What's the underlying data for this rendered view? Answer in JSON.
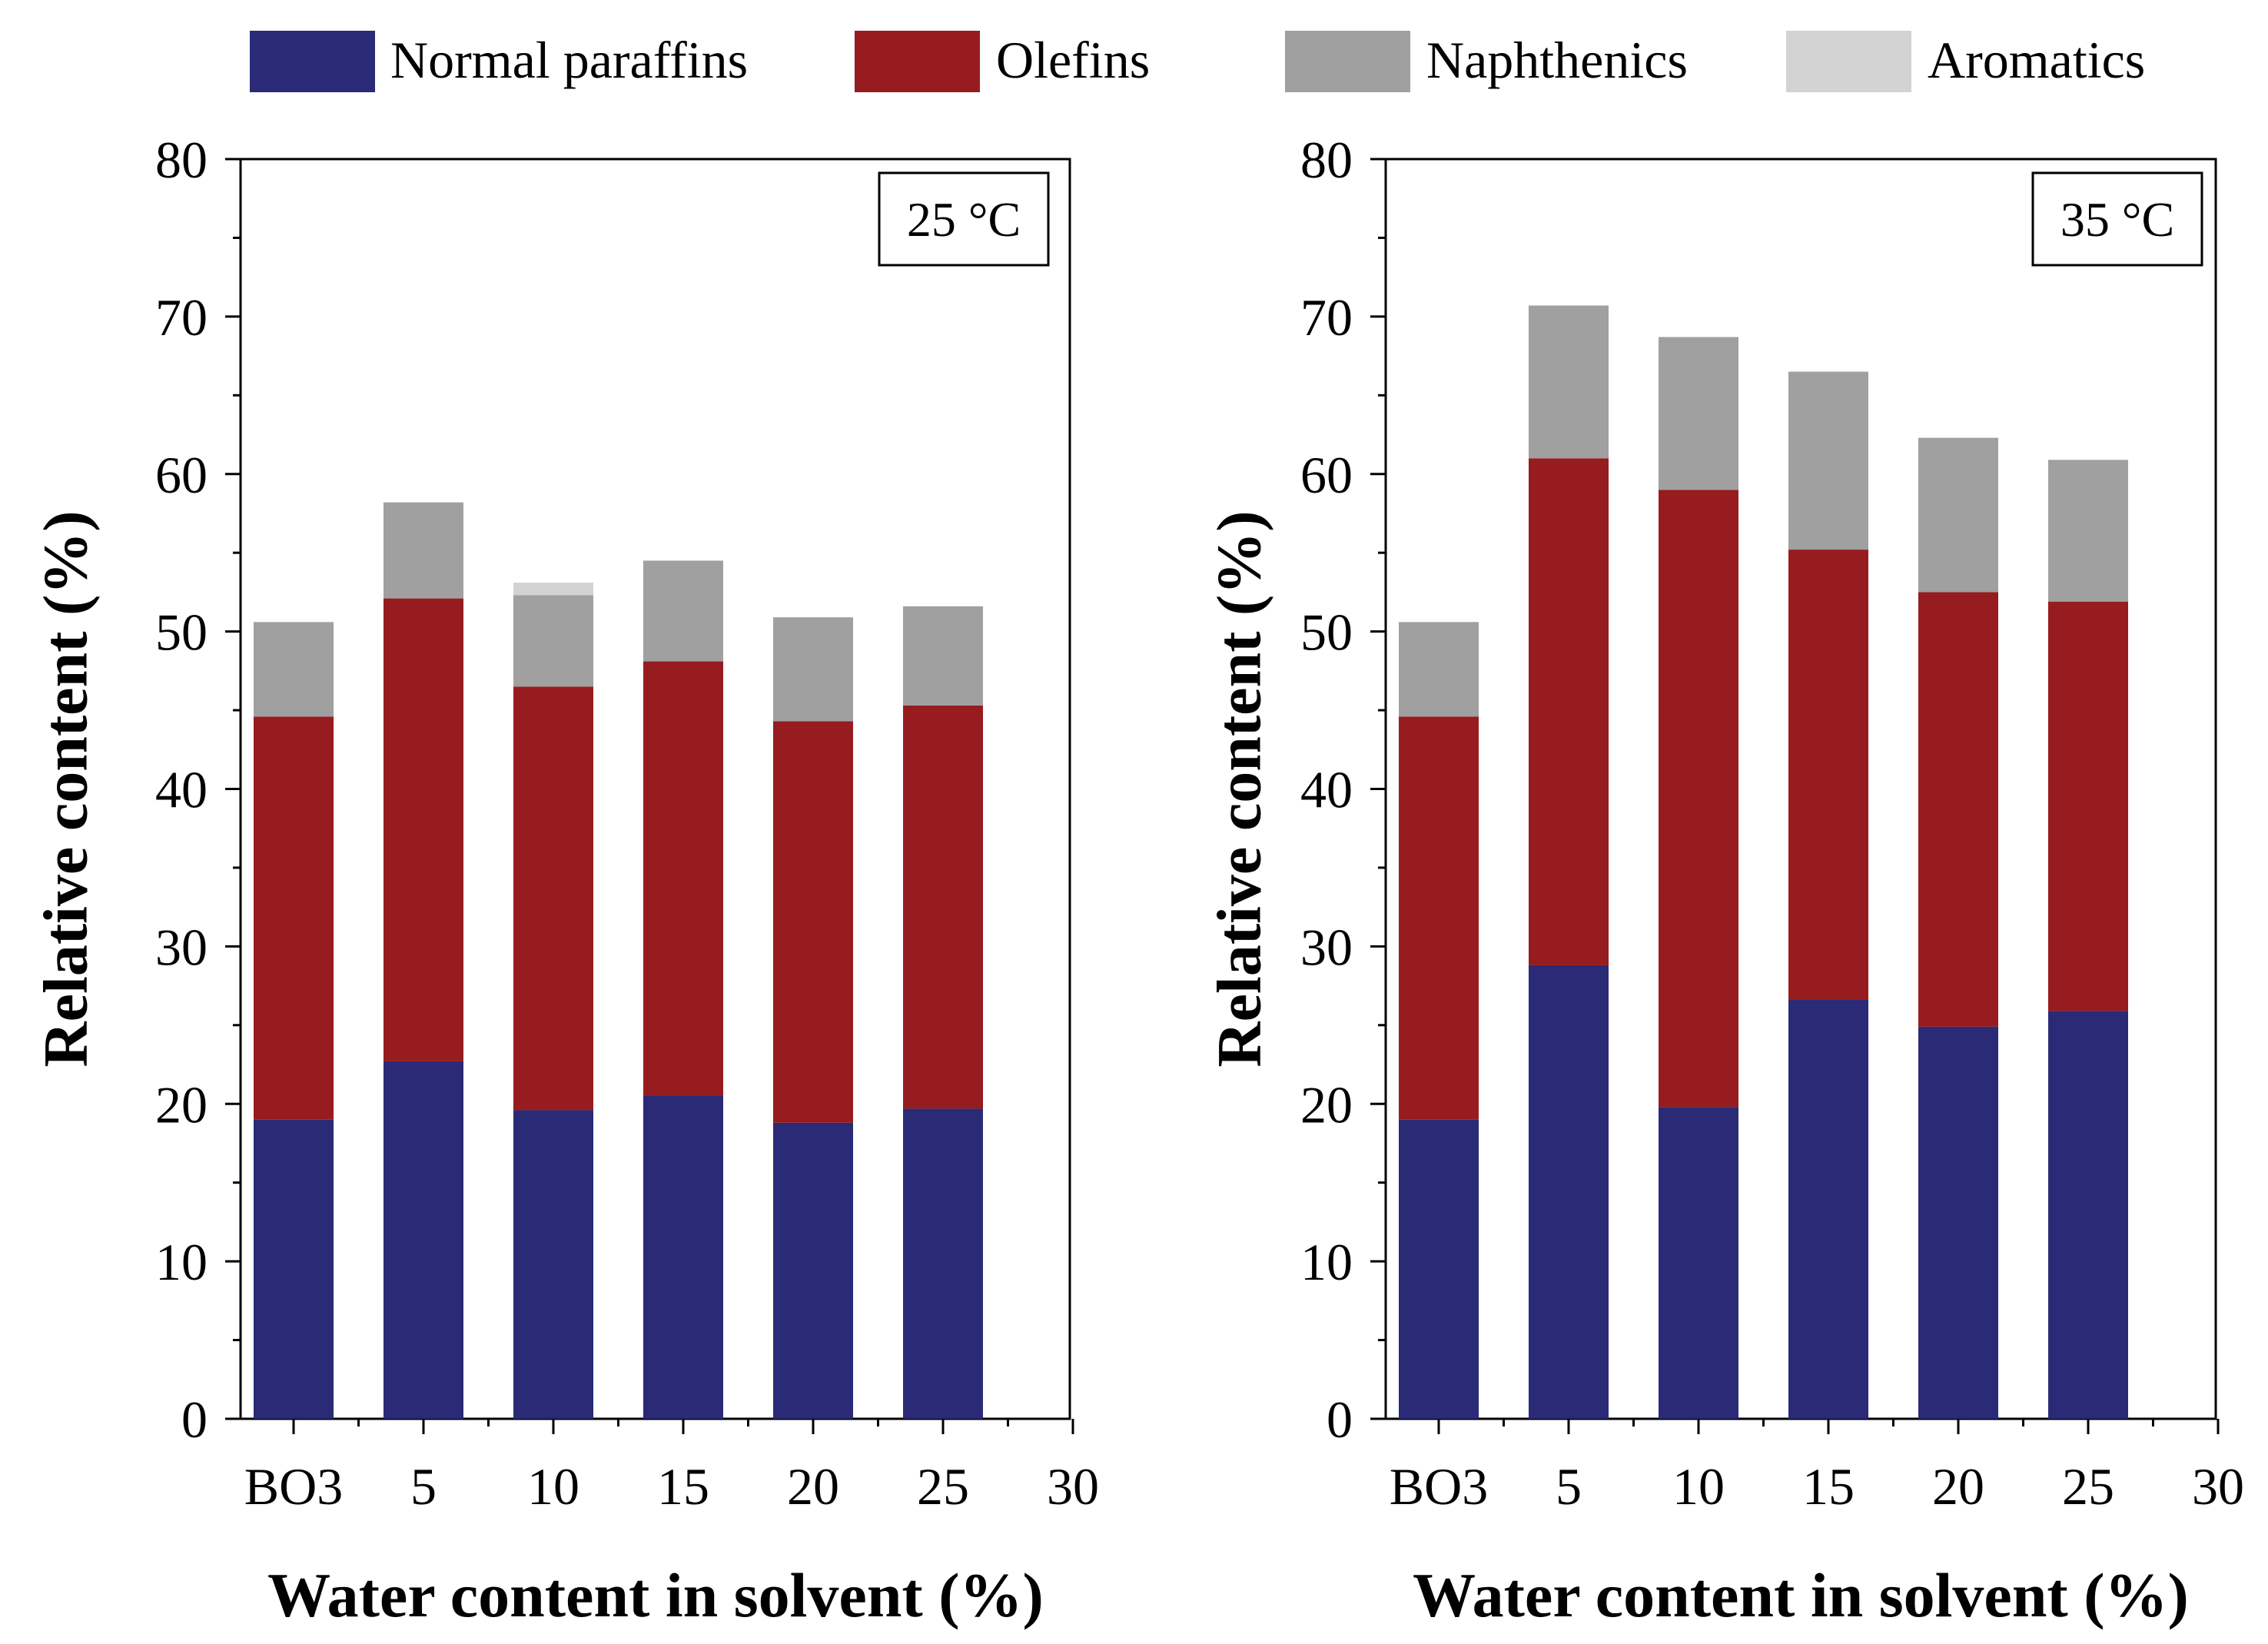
{
  "legend": {
    "items": [
      {
        "label": "Normal paraffins",
        "color": "#2a2a76"
      },
      {
        "label": "Olefins",
        "color": "#961c1f"
      },
      {
        "label": "Naphthenics",
        "color": "#a0a0a0"
      },
      {
        "label": "Aromatics",
        "color": "#d3d3d3"
      }
    ]
  },
  "chart_data": [
    {
      "type": "bar",
      "stacked": true,
      "panel_label": "25 °C",
      "xlabel": "Water content in solvent (%)",
      "ylabel": "Relative content (%)",
      "ylim": [
        0,
        80
      ],
      "yticks": [
        0,
        10,
        20,
        30,
        40,
        50,
        60,
        70,
        80
      ],
      "xticks": [
        "BO3",
        "5",
        "10",
        "15",
        "20",
        "25",
        "30"
      ],
      "categories": [
        "BO3",
        "5",
        "10",
        "15",
        "20",
        "25"
      ],
      "series": [
        {
          "name": "Normal paraffins",
          "values": [
            19.0,
            22.7,
            19.6,
            20.5,
            18.8,
            19.7
          ]
        },
        {
          "name": "Olefins",
          "values": [
            25.6,
            29.4,
            26.9,
            27.6,
            25.5,
            25.6
          ]
        },
        {
          "name": "Naphthenics",
          "values": [
            6.0,
            6.1,
            5.8,
            6.4,
            6.6,
            6.3
          ]
        },
        {
          "name": "Aromatics",
          "values": [
            0,
            0,
            0.8,
            0,
            0,
            0
          ]
        }
      ]
    },
    {
      "type": "bar",
      "stacked": true,
      "panel_label": "35 °C",
      "xlabel": "Water content in solvent (%)",
      "ylabel": "Relative content (%)",
      "ylim": [
        0,
        80
      ],
      "yticks": [
        0,
        10,
        20,
        30,
        40,
        50,
        60,
        70,
        80
      ],
      "xticks": [
        "BO3",
        "5",
        "10",
        "15",
        "20",
        "25",
        "30"
      ],
      "categories": [
        "BO3",
        "5",
        "10",
        "15",
        "20",
        "25"
      ],
      "series": [
        {
          "name": "Normal paraffins",
          "values": [
            19.0,
            28.8,
            19.8,
            26.6,
            24.9,
            25.9
          ]
        },
        {
          "name": "Olefins",
          "values": [
            25.6,
            32.2,
            39.2,
            28.6,
            27.6,
            26.0
          ]
        },
        {
          "name": "Naphthenics",
          "values": [
            6.0,
            9.7,
            9.7,
            11.3,
            9.8,
            9.0
          ]
        },
        {
          "name": "Aromatics",
          "values": [
            0,
            0,
            0,
            0,
            0,
            0
          ]
        }
      ]
    }
  ]
}
